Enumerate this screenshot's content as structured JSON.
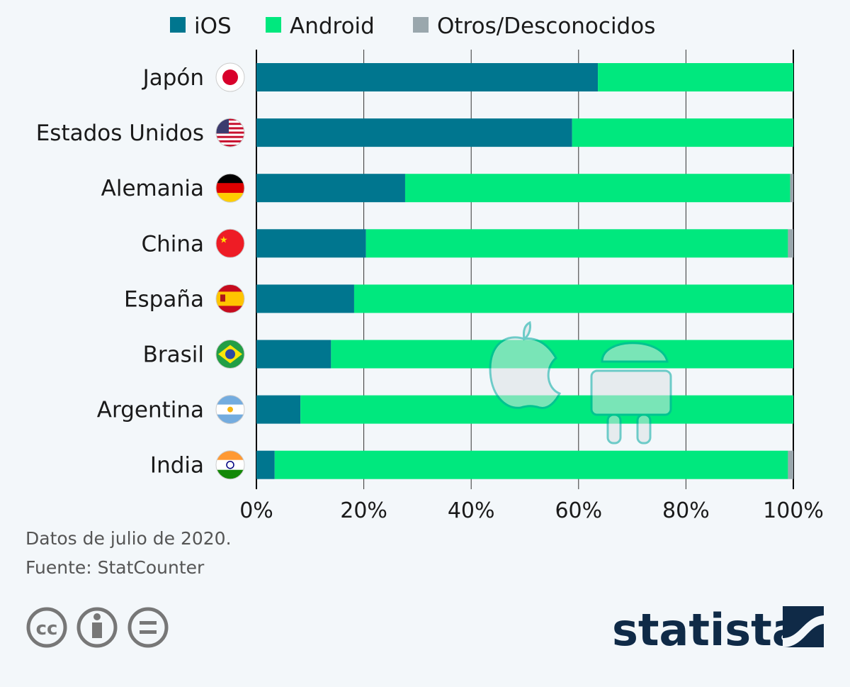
{
  "chart_data": {
    "type": "bar",
    "stacked": true,
    "orientation": "horizontal",
    "categories": [
      "Japón",
      "Estados Unidos",
      "Alemania",
      "China",
      "España",
      "Brasil",
      "Argentina",
      "India"
    ],
    "flags": [
      "jp",
      "us",
      "de",
      "cn",
      "es",
      "br",
      "ar",
      "in"
    ],
    "series": [
      {
        "name": "iOS",
        "color": "#00768f",
        "values": [
          63.6,
          58.8,
          27.7,
          20.4,
          18.2,
          13.9,
          8.2,
          3.4
        ]
      },
      {
        "name": "Android",
        "color": "#00e87e",
        "values": [
          36.4,
          41.2,
          71.7,
          78.6,
          81.8,
          86.1,
          91.8,
          95.6
        ]
      },
      {
        "name": "Otros/Desconocidos",
        "color": "#9aa7ad",
        "values": [
          0,
          0,
          0.6,
          1.0,
          0,
          0,
          0,
          1.0
        ]
      }
    ],
    "xlim": [
      0,
      100
    ],
    "xticks": [
      0,
      20,
      40,
      60,
      80,
      100
    ],
    "xtick_labels": [
      "0%",
      "20%",
      "40%",
      "60%",
      "80%",
      "100%"
    ],
    "legend": "top",
    "grid": true
  },
  "footer": {
    "note": "Datos de julio de 2020.",
    "source": "Fuente: StatCounter",
    "brand": "statista"
  }
}
